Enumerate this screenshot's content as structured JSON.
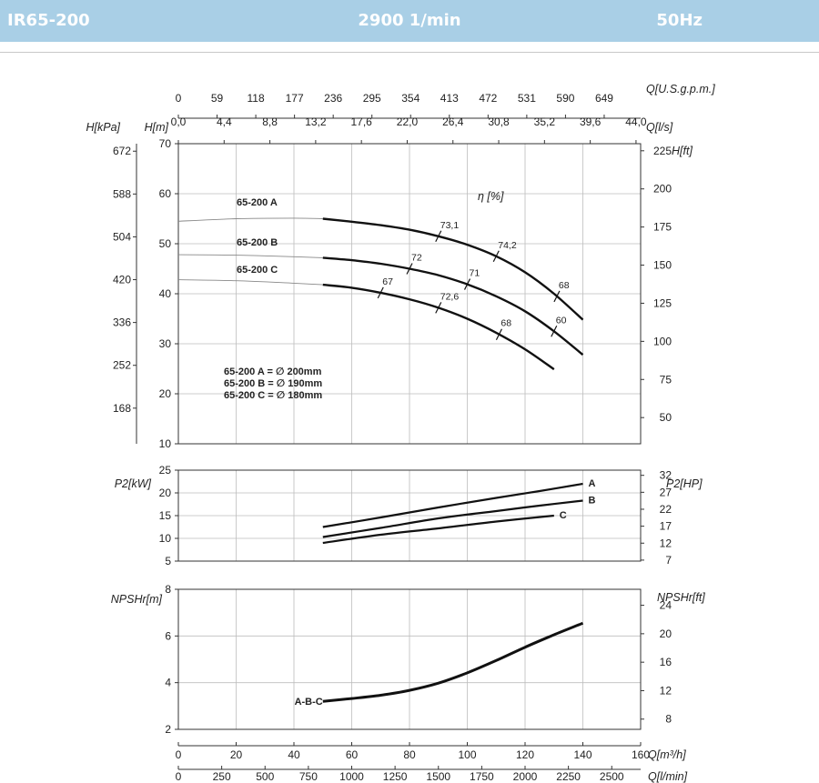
{
  "banner": {
    "model": "IR65-200",
    "speed": "2900 1/min",
    "frequency": "50Hz",
    "bg_color": "#a9cfe6",
    "text_color": "#ffffff"
  },
  "chart_data": [
    {
      "type": "line",
      "panel": "head",
      "x_unit_label": "Q[m³/h]",
      "xlim": [
        0,
        160
      ],
      "ylabel": "H[m]",
      "ylim": [
        10,
        70
      ],
      "yticks": [
        10,
        20,
        30,
        40,
        50,
        60,
        70
      ],
      "y_secondary_label_left": "H[kPa]",
      "y_secondary_ticks_left": [
        "672",
        "588",
        "504",
        "420",
        "336",
        "252",
        "168"
      ],
      "y_secondary_ticks_left_values": [
        672,
        588,
        504,
        420,
        336,
        252,
        168
      ],
      "y_secondary_label_right": "H[ft]",
      "y_secondary_ticks_right": [
        "225",
        "200",
        "175",
        "150",
        "125",
        "100",
        "75",
        "50"
      ],
      "y_secondary_ticks_right_values": [
        225,
        200,
        175,
        150,
        125,
        100,
        75,
        50
      ],
      "top_axis_usgpm_label": "Q[U.S.g.p.m.]",
      "top_axis_usgpm_ticks": [
        "0",
        "59",
        "118",
        "177",
        "236",
        "295",
        "354",
        "413",
        "472",
        "531",
        "590",
        "649"
      ],
      "top_axis_ls_label": "Q[l/s]",
      "top_axis_ls_ticks": [
        "0,0",
        "4,4",
        "8,8",
        "13,2",
        "17,6",
        "22,0",
        "26,4",
        "30,8",
        "35,2",
        "39,6",
        "44,0"
      ],
      "efficiency_label": "η [%]",
      "grid": true,
      "series": [
        {
          "name": "65-200 A",
          "values": [
            [
              50,
              55.0
            ],
            [
              60,
              54.4
            ],
            [
              70,
              53.7
            ],
            [
              80,
              52.8
            ],
            [
              90,
              51.5
            ],
            [
              100,
              49.8
            ],
            [
              110,
              47.5
            ],
            [
              120,
              44.3
            ],
            [
              130,
              40.0
            ],
            [
              140,
              34.8
            ]
          ],
          "extension": [
            [
              0,
              54.5
            ],
            [
              20,
              55.0
            ],
            [
              40,
              55.1
            ],
            [
              50,
              55.0
            ]
          ]
        },
        {
          "name": "65-200 B",
          "values": [
            [
              50,
              47.2
            ],
            [
              60,
              46.7
            ],
            [
              70,
              46.0
            ],
            [
              80,
              45.0
            ],
            [
              90,
              43.7
            ],
            [
              100,
              41.9
            ],
            [
              110,
              39.5
            ],
            [
              120,
              36.5
            ],
            [
              130,
              32.5
            ],
            [
              140,
              27.8
            ]
          ],
          "extension": [
            [
              0,
              47.8
            ],
            [
              20,
              47.7
            ],
            [
              40,
              47.4
            ],
            [
              50,
              47.2
            ]
          ]
        },
        {
          "name": "65-200 C",
          "values": [
            [
              50,
              41.8
            ],
            [
              60,
              41.2
            ],
            [
              70,
              40.2
            ],
            [
              80,
              38.9
            ],
            [
              90,
              37.2
            ],
            [
              100,
              35.0
            ],
            [
              110,
              32.2
            ],
            [
              120,
              28.9
            ],
            [
              130,
              24.9
            ]
          ],
          "extension": [
            [
              0,
              42.8
            ],
            [
              20,
              42.6
            ],
            [
              40,
              42.1
            ],
            [
              50,
              41.8
            ]
          ]
        }
      ],
      "efficiency_marks": [
        {
          "label": "73,1",
          "q": 90,
          "curve": "65-200 A"
        },
        {
          "label": "74,2",
          "q": 110,
          "curve": "65-200 A"
        },
        {
          "label": "68",
          "q": 131,
          "curve": "65-200 A"
        },
        {
          "label": "72",
          "q": 80,
          "curve": "65-200 B"
        },
        {
          "label": "71",
          "q": 100,
          "curve": "65-200 B"
        },
        {
          "label": "60",
          "q": 130,
          "curve": "65-200 B"
        },
        {
          "label": "67",
          "q": 70,
          "curve": "65-200 C"
        },
        {
          "label": "72,6",
          "q": 90,
          "curve": "65-200 C"
        },
        {
          "label": "68",
          "q": 111,
          "curve": "65-200 C"
        }
      ],
      "annotations": [
        "65-200 A = ∅ 200mm",
        "65-200 B = ∅ 190mm",
        "65-200 C = ∅ 180mm"
      ]
    },
    {
      "type": "line",
      "panel": "power",
      "ylabel": "P2[kW]",
      "ylim": [
        5,
        25
      ],
      "yticks": [
        5,
        10,
        15,
        20,
        25
      ],
      "y_secondary_label_right": "P2[HP]",
      "y_secondary_ticks_right": [
        "32",
        "27",
        "22",
        "17",
        "12",
        "7"
      ],
      "y_secondary_ticks_right_values": [
        32,
        27,
        22,
        17,
        12,
        7
      ],
      "grid": true,
      "series": [
        {
          "name": "A",
          "values": [
            [
              50,
              12.5
            ],
            [
              70,
              14.6
            ],
            [
              90,
              16.8
            ],
            [
              110,
              18.9
            ],
            [
              125,
              20.4
            ],
            [
              140,
              22.0
            ]
          ]
        },
        {
          "name": "B",
          "values": [
            [
              50,
              10.3
            ],
            [
              70,
              12.3
            ],
            [
              90,
              14.4
            ],
            [
              110,
              16.0
            ],
            [
              125,
              17.2
            ],
            [
              140,
              18.3
            ]
          ]
        },
        {
          "name": "C",
          "values": [
            [
              50,
              9.0
            ],
            [
              70,
              10.8
            ],
            [
              90,
              12.2
            ],
            [
              110,
              13.7
            ],
            [
              130,
              15.0
            ]
          ]
        }
      ]
    },
    {
      "type": "line",
      "panel": "npsh",
      "ylabel": "NPSHr[m]",
      "ylim": [
        2,
        8
      ],
      "yticks": [
        2,
        4,
        6,
        8
      ],
      "y_secondary_label_right": "NPSHr[ft]",
      "y_secondary_ticks_right": [
        "24",
        "20",
        "16",
        "12",
        "8"
      ],
      "y_secondary_ticks_right_values": [
        24,
        20,
        16,
        12,
        8
      ],
      "grid": true,
      "series": [
        {
          "name": "A-B-C",
          "values": [
            [
              50,
              3.2
            ],
            [
              60,
              3.32
            ],
            [
              70,
              3.46
            ],
            [
              80,
              3.67
            ],
            [
              90,
              3.98
            ],
            [
              100,
              4.42
            ],
            [
              110,
              4.95
            ],
            [
              120,
              5.52
            ],
            [
              130,
              6.05
            ],
            [
              140,
              6.55
            ]
          ]
        }
      ]
    },
    {
      "type": "axis",
      "panel": "bottom_axes",
      "xlabel_m3h": "Q[m³/h]",
      "xticks_m3h": [
        "0",
        "20",
        "40",
        "60",
        "80",
        "100",
        "120",
        "140",
        "160"
      ],
      "xlabel_lmin": "Q[l/min]",
      "xticks_lmin": [
        "0",
        "250",
        "500",
        "750",
        "1000",
        "1250",
        "1500",
        "1750",
        "2000",
        "2250",
        "2500"
      ]
    }
  ]
}
